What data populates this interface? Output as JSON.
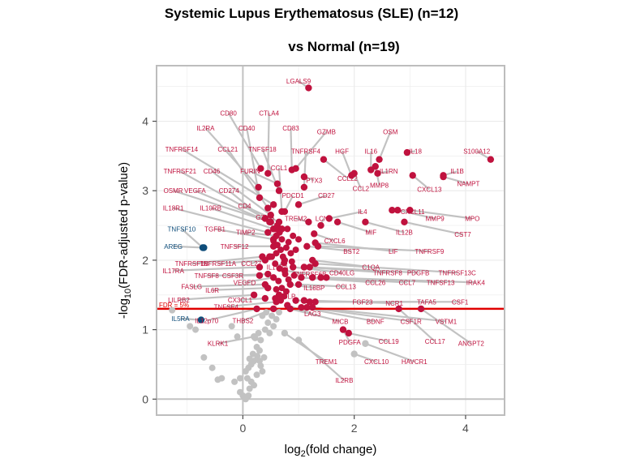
{
  "chart_data": {
    "type": "scatter",
    "title_line1": "Systemic Lupus Erythematosus (SLE) (n=12)",
    "title_line2": "vs Normal (n=19)",
    "xlabel_prefix": "log",
    "xlabel_sub": "2",
    "xlabel_suffix": "(fold change)",
    "ylabel_prefix": "-log",
    "ylabel_sub": "10",
    "ylabel_suffix": "(FDR-adjusted p-value)",
    "xlim": [
      -1.55,
      4.7
    ],
    "ylim": [
      -0.23,
      4.8
    ],
    "xticks": [
      0,
      2,
      4
    ],
    "yticks": [
      0,
      1,
      2,
      3,
      4
    ],
    "grid": true,
    "threshold": {
      "y": 1.301,
      "label": "FDR = 5%",
      "color": "#e00000"
    },
    "colors": {
      "up": "#c0123e",
      "down": "#0e4d7a",
      "ns": "#c2c2c2",
      "leader": "#c2c2c2",
      "zero_line": "#c2c2c2"
    },
    "labeled_points": [
      {
        "name": "LGALS9",
        "x": 1.18,
        "y": 4.48,
        "lx": 1.0,
        "ly": 4.58,
        "dir": "up"
      },
      {
        "name": "CD80",
        "x": 0.32,
        "y": 3.32,
        "lx": -0.26,
        "ly": 4.12,
        "dir": "up"
      },
      {
        "name": "CTLA4",
        "x": 0.45,
        "y": 3.25,
        "lx": 0.47,
        "ly": 4.12,
        "dir": "up"
      },
      {
        "name": "IL2RA",
        "x": 0.28,
        "y": 3.05,
        "lx": -0.67,
        "ly": 3.9,
        "dir": "up"
      },
      {
        "name": "CD40",
        "x": 0.3,
        "y": 2.9,
        "lx": 0.07,
        "ly": 3.9,
        "dir": "up"
      },
      {
        "name": "CD83",
        "x": 0.88,
        "y": 3.3,
        "lx": 0.86,
        "ly": 3.9,
        "dir": "up"
      },
      {
        "name": "GZMB",
        "x": 0.95,
        "y": 3.32,
        "lx": 1.5,
        "ly": 3.85,
        "dir": "up"
      },
      {
        "name": "OSM",
        "x": 2.45,
        "y": 3.45,
        "lx": 2.65,
        "ly": 3.85,
        "dir": "up"
      },
      {
        "name": "TNFRSF14",
        "x": 0.55,
        "y": 2.8,
        "lx": -1.1,
        "ly": 3.6,
        "dir": "up"
      },
      {
        "name": "CCL21",
        "x": 0.45,
        "y": 2.75,
        "lx": -0.27,
        "ly": 3.6,
        "dir": "up"
      },
      {
        "name": "TNFSF18",
        "x": 0.65,
        "y": 3.0,
        "lx": 0.35,
        "ly": 3.6,
        "dir": "up"
      },
      {
        "name": "TNFRSF4",
        "x": 1.1,
        "y": 3.05,
        "lx": 1.13,
        "ly": 3.57,
        "dir": "up"
      },
      {
        "name": "HGF",
        "x": 1.95,
        "y": 3.22,
        "lx": 1.78,
        "ly": 3.57,
        "dir": "up"
      },
      {
        "name": "IL16",
        "x": 2.3,
        "y": 3.3,
        "lx": 2.3,
        "ly": 3.57,
        "dir": "up"
      },
      {
        "name": "IL18",
        "x": 2.95,
        "y": 3.55,
        "lx": 3.1,
        "ly": 3.57,
        "dir": "up"
      },
      {
        "name": "S100A12",
        "x": 4.45,
        "y": 3.45,
        "lx": 4.2,
        "ly": 3.57,
        "dir": "up"
      },
      {
        "name": "CCL1",
        "x": 0.7,
        "y": 2.7,
        "lx": 0.65,
        "ly": 3.33,
        "dir": "up"
      },
      {
        "name": "TNFRSF21",
        "x": 0.4,
        "y": 2.6,
        "lx": -1.13,
        "ly": 3.28,
        "dir": "up"
      },
      {
        "name": "CD46",
        "x": 0.5,
        "y": 2.65,
        "lx": -0.56,
        "ly": 3.28,
        "dir": "up"
      },
      {
        "name": "FURIN",
        "x": 0.62,
        "y": 3.1,
        "lx": 0.13,
        "ly": 3.28,
        "dir": "up"
      },
      {
        "name": "IL1RN",
        "x": 2.42,
        "y": 3.25,
        "lx": 2.62,
        "ly": 3.28,
        "dir": "up"
      },
      {
        "name": "IL1B",
        "x": 3.6,
        "y": 3.22,
        "lx": 3.85,
        "ly": 3.28,
        "dir": "up"
      },
      {
        "name": "PTX3",
        "x": 1.1,
        "y": 3.2,
        "lx": 1.28,
        "ly": 3.15,
        "dir": "up"
      },
      {
        "name": "CCL22",
        "x": 1.45,
        "y": 3.45,
        "lx": 1.88,
        "ly": 3.18,
        "dir": "up"
      },
      {
        "name": "MMP8",
        "x": 2.38,
        "y": 3.35,
        "lx": 2.45,
        "ly": 3.08,
        "dir": "up"
      },
      {
        "name": "CXCL13",
        "x": 3.05,
        "y": 3.22,
        "lx": 3.35,
        "ly": 3.02,
        "dir": "up"
      },
      {
        "name": "NAMPT",
        "x": 3.6,
        "y": 3.2,
        "lx": 4.05,
        "ly": 3.1,
        "dir": "up"
      },
      {
        "name": "OSMR",
        "x": 0.5,
        "y": 2.55,
        "lx": -1.25,
        "ly": 3.0,
        "dir": "up"
      },
      {
        "name": "VEGFA",
        "x": 0.48,
        "y": 2.55,
        "lx": -0.86,
        "ly": 3.0,
        "dir": "up"
      },
      {
        "name": "CD274",
        "x": 0.6,
        "y": 2.45,
        "lx": -0.25,
        "ly": 3.0,
        "dir": "up"
      },
      {
        "name": "PDCD1",
        "x": 0.75,
        "y": 2.7,
        "lx": 0.9,
        "ly": 2.93,
        "dir": "up"
      },
      {
        "name": "CD27",
        "x": 1.0,
        "y": 2.8,
        "lx": 1.5,
        "ly": 2.93,
        "dir": "up"
      },
      {
        "name": "CCL2",
        "x": 2.0,
        "y": 3.25,
        "lx": 2.12,
        "ly": 3.03,
        "dir": "up"
      },
      {
        "name": "IL18R1",
        "x": 0.45,
        "y": 2.4,
        "lx": -1.25,
        "ly": 2.75,
        "dir": "up"
      },
      {
        "name": "IL10RB",
        "x": 0.55,
        "y": 2.45,
        "lx": -0.58,
        "ly": 2.75,
        "dir": "up"
      },
      {
        "name": "CD4",
        "x": 0.65,
        "y": 2.55,
        "lx": 0.03,
        "ly": 2.78,
        "dir": "up"
      },
      {
        "name": "IL4",
        "x": 1.55,
        "y": 2.6,
        "lx": 2.15,
        "ly": 2.7,
        "dir": "up"
      },
      {
        "name": "CXCL11",
        "x": 2.68,
        "y": 2.72,
        "lx": 3.05,
        "ly": 2.7,
        "dir": "up"
      },
      {
        "name": "GZMA",
        "x": 0.7,
        "y": 2.45,
        "lx": 0.4,
        "ly": 2.62,
        "dir": "up"
      },
      {
        "name": "TREM2",
        "x": 1.18,
        "y": 2.55,
        "lx": 0.95,
        "ly": 2.6,
        "dir": "up"
      },
      {
        "name": "LCN2",
        "x": 1.4,
        "y": 2.5,
        "lx": 1.45,
        "ly": 2.6,
        "dir": "up"
      },
      {
        "name": "MMP9",
        "x": 2.78,
        "y": 2.72,
        "lx": 3.45,
        "ly": 2.6,
        "dir": "up"
      },
      {
        "name": "MPO",
        "x": 3.0,
        "y": 2.72,
        "lx": 4.12,
        "ly": 2.6,
        "dir": "up"
      },
      {
        "name": "TNFSF10",
        "x": -0.72,
        "y": 2.18,
        "lx": -1.1,
        "ly": 2.45,
        "dir": "down"
      },
      {
        "name": "TGFB1",
        "x": 0.55,
        "y": 2.3,
        "lx": -0.5,
        "ly": 2.45,
        "dir": "up"
      },
      {
        "name": "TIMP2",
        "x": 0.6,
        "y": 2.35,
        "lx": 0.05,
        "ly": 2.4,
        "dir": "up"
      },
      {
        "name": "MIF",
        "x": 1.7,
        "y": 2.55,
        "lx": 2.3,
        "ly": 2.4,
        "dir": "up"
      },
      {
        "name": "IL12B",
        "x": 2.2,
        "y": 2.55,
        "lx": 2.9,
        "ly": 2.4,
        "dir": "up"
      },
      {
        "name": "CST7",
        "x": 2.9,
        "y": 2.55,
        "lx": 3.95,
        "ly": 2.37,
        "dir": "up"
      },
      {
        "name": "CXCL6",
        "x": 1.28,
        "y": 2.38,
        "lx": 1.65,
        "ly": 2.28,
        "dir": "up"
      },
      {
        "name": "AREG",
        "x": -0.7,
        "y": 2.18,
        "lx": -1.25,
        "ly": 2.2,
        "dir": "down"
      },
      {
        "name": "TNFSF12",
        "x": 0.55,
        "y": 2.2,
        "lx": -0.15,
        "ly": 2.2,
        "dir": "up"
      },
      {
        "name": "BST2",
        "x": 1.15,
        "y": 2.2,
        "lx": 1.95,
        "ly": 2.13,
        "dir": "up"
      },
      {
        "name": "LIF",
        "x": 1.3,
        "y": 2.25,
        "lx": 2.7,
        "ly": 2.13,
        "dir": "up"
      },
      {
        "name": "TNFRSF9",
        "x": 1.35,
        "y": 2.2,
        "lx": 3.35,
        "ly": 2.13,
        "dir": "up"
      },
      {
        "name": "TNFRSF1B",
        "x": 0.35,
        "y": 2.05,
        "lx": -0.92,
        "ly": 1.95,
        "dir": "up"
      },
      {
        "name": "TNFRSF11A",
        "x": 0.4,
        "y": 2.0,
        "lx": -0.45,
        "ly": 1.95,
        "dir": "up"
      },
      {
        "name": "CCL27",
        "x": 0.48,
        "y": 2.05,
        "lx": 0.15,
        "ly": 1.95,
        "dir": "up"
      },
      {
        "name": "IL15RA",
        "x": 0.75,
        "y": 2.0,
        "lx": 0.62,
        "ly": 1.9,
        "dir": "up"
      },
      {
        "name": "C1QA",
        "x": 1.25,
        "y": 2.0,
        "lx": 2.3,
        "ly": 1.9,
        "dir": "up"
      },
      {
        "name": "TNFRSF13C",
        "x": 1.3,
        "y": 1.95,
        "lx": 3.85,
        "ly": 1.82,
        "dir": "up"
      },
      {
        "name": "IL17RA",
        "x": 0.3,
        "y": 1.9,
        "lx": -1.25,
        "ly": 1.85,
        "dir": "up"
      },
      {
        "name": "CD40LG",
        "x": 0.9,
        "y": 1.9,
        "lx": 1.78,
        "ly": 1.82,
        "dir": "up"
      },
      {
        "name": "TNFRSF8",
        "x": 1.1,
        "y": 1.9,
        "lx": 2.6,
        "ly": 1.82,
        "dir": "up"
      },
      {
        "name": "PDGFB",
        "x": 1.2,
        "y": 1.9,
        "lx": 3.15,
        "ly": 1.82,
        "dir": "up"
      },
      {
        "name": "TNFRSF6B",
        "x": 0.75,
        "y": 1.85,
        "lx": 1.2,
        "ly": 1.8,
        "dir": "up"
      },
      {
        "name": "TNFSF8",
        "x": 0.3,
        "y": 1.78,
        "lx": -0.65,
        "ly": 1.78,
        "dir": "up"
      },
      {
        "name": "CSF3R",
        "x": 0.45,
        "y": 1.8,
        "lx": -0.18,
        "ly": 1.78,
        "dir": "up"
      },
      {
        "name": "VEGFD",
        "x": 0.55,
        "y": 1.75,
        "lx": 0.03,
        "ly": 1.68,
        "dir": "up"
      },
      {
        "name": "CCL26",
        "x": 1.05,
        "y": 1.75,
        "lx": 2.38,
        "ly": 1.68,
        "dir": "up"
      },
      {
        "name": "CCL7",
        "x": 1.25,
        "y": 1.75,
        "lx": 2.95,
        "ly": 1.68,
        "dir": "up"
      },
      {
        "name": "TNFSF13",
        "x": 1.4,
        "y": 1.75,
        "lx": 3.55,
        "ly": 1.68,
        "dir": "up"
      },
      {
        "name": "IRAK4",
        "x": 1.5,
        "y": 1.75,
        "lx": 4.18,
        "ly": 1.68,
        "dir": "up"
      },
      {
        "name": "FASLG",
        "x": 0.4,
        "y": 1.65,
        "lx": -0.92,
        "ly": 1.62,
        "dir": "up"
      },
      {
        "name": "IL6R",
        "x": 0.45,
        "y": 1.6,
        "lx": -0.55,
        "ly": 1.57,
        "dir": "up"
      },
      {
        "name": "IL18BP",
        "x": 0.85,
        "y": 1.65,
        "lx": 1.28,
        "ly": 1.6,
        "dir": "up"
      },
      {
        "name": "CCL13",
        "x": 1.0,
        "y": 1.65,
        "lx": 1.85,
        "ly": 1.62,
        "dir": "up"
      },
      {
        "name": "TSLP",
        "x": 0.65,
        "y": 1.5,
        "lx": 0.8,
        "ly": 1.48,
        "dir": "up"
      },
      {
        "name": "LILRB2",
        "x": 0.2,
        "y": 1.5,
        "lx": -1.15,
        "ly": 1.43,
        "dir": "up"
      },
      {
        "name": "CX3CL1",
        "x": 0.4,
        "y": 1.45,
        "lx": -0.05,
        "ly": 1.43,
        "dir": "up"
      },
      {
        "name": "FGF23",
        "x": 0.95,
        "y": 1.42,
        "lx": 2.15,
        "ly": 1.4,
        "dir": "up"
      },
      {
        "name": "NCR1",
        "x": 1.1,
        "y": 1.42,
        "lx": 2.72,
        "ly": 1.38,
        "dir": "up"
      },
      {
        "name": "TAFA5",
        "x": 1.2,
        "y": 1.4,
        "lx": 3.3,
        "ly": 1.4,
        "dir": "up"
      },
      {
        "name": "CSF1",
        "x": 1.3,
        "y": 1.4,
        "lx": 3.9,
        "ly": 1.4,
        "dir": "up"
      },
      {
        "name": "TNFSF4",
        "x": 0.6,
        "y": 1.4,
        "lx": -0.3,
        "ly": 1.33,
        "dir": "up"
      },
      {
        "name": "LAG3",
        "x": 0.8,
        "y": 1.35,
        "lx": 1.25,
        "ly": 1.23,
        "dir": "up"
      },
      {
        "name": "IL5RA",
        "x": -0.75,
        "y": 1.14,
        "lx": -1.12,
        "ly": 1.16,
        "dir": "down"
      },
      {
        "name": "IL12p70",
        "x": 0.25,
        "y": 1.3,
        "lx": -0.65,
        "ly": 1.13,
        "dir": "up"
      },
      {
        "name": "THBS2",
        "x": 0.55,
        "y": 1.3,
        "lx": 0.0,
        "ly": 1.13,
        "dir": "up"
      },
      {
        "name": "MICB",
        "x": 0.85,
        "y": 1.3,
        "lx": 1.75,
        "ly": 1.12,
        "dir": "up"
      },
      {
        "name": "BDNF",
        "x": 1.05,
        "y": 1.32,
        "lx": 2.38,
        "ly": 1.12,
        "dir": "up"
      },
      {
        "name": "CSF1R",
        "x": 1.15,
        "y": 1.32,
        "lx": 3.02,
        "ly": 1.12,
        "dir": "up"
      },
      {
        "name": "VSTM1",
        "x": 1.25,
        "y": 1.32,
        "lx": 3.65,
        "ly": 1.12,
        "dir": "up"
      },
      {
        "name": "KLRK1",
        "x": 0.2,
        "y": 0.9,
        "lx": -0.45,
        "ly": 0.8,
        "dir": "ns"
      },
      {
        "name": "PDGFA",
        "x": 1.8,
        "y": 1.0,
        "lx": 1.92,
        "ly": 0.82,
        "dir": "up"
      },
      {
        "name": "CCL19",
        "x": 1.9,
        "y": 0.95,
        "lx": 2.62,
        "ly": 0.83,
        "dir": "up"
      },
      {
        "name": "CCL17",
        "x": 2.8,
        "y": 1.3,
        "lx": 3.45,
        "ly": 0.83,
        "dir": "up"
      },
      {
        "name": "ANGPT2",
        "x": 3.2,
        "y": 1.3,
        "lx": 4.1,
        "ly": 0.8,
        "dir": "up"
      },
      {
        "name": "TREM1",
        "x": 0.75,
        "y": 0.95,
        "lx": 1.5,
        "ly": 0.54,
        "dir": "ns"
      },
      {
        "name": "CXCL10",
        "x": 2.0,
        "y": 0.65,
        "lx": 2.4,
        "ly": 0.54,
        "dir": "ns"
      },
      {
        "name": "HAVCR1",
        "x": 2.2,
        "y": 0.8,
        "lx": 3.08,
        "ly": 0.54,
        "dir": "ns"
      },
      {
        "name": "IL2RB",
        "x": 1.0,
        "y": 0.85,
        "lx": 1.82,
        "ly": 0.27,
        "dir": "ns"
      }
    ],
    "other_points": {
      "up": [
        [
          0.55,
          2.28
        ],
        [
          0.62,
          2.22
        ],
        [
          0.7,
          2.3
        ],
        [
          0.78,
          2.18
        ],
        [
          0.82,
          2.26
        ],
        [
          0.6,
          2.1
        ],
        [
          0.68,
          2.15
        ],
        [
          0.72,
          2.05
        ],
        [
          0.58,
          1.95
        ],
        [
          0.66,
          1.88
        ],
        [
          0.52,
          2.05
        ],
        [
          0.74,
          1.96
        ],
        [
          0.86,
          2.1
        ],
        [
          0.95,
          2.15
        ],
        [
          0.88,
          1.98
        ],
        [
          0.64,
          1.7
        ],
        [
          0.7,
          1.6
        ],
        [
          0.78,
          1.55
        ],
        [
          0.82,
          1.72
        ],
        [
          0.6,
          1.58
        ],
        [
          0.76,
          1.8
        ],
        [
          0.92,
          1.78
        ],
        [
          0.68,
          1.42
        ],
        [
          0.74,
          1.48
        ],
        [
          0.58,
          1.45
        ],
        [
          0.66,
          2.4
        ],
        [
          0.8,
          2.45
        ],
        [
          0.9,
          2.35
        ],
        [
          1.0,
          2.3
        ],
        [
          0.62,
          2.5
        ]
      ],
      "ns": [
        [
          -1.27,
          1.28
        ],
        [
          -0.95,
          1.05
        ],
        [
          -0.85,
          1.0
        ],
        [
          -0.7,
          0.6
        ],
        [
          -0.55,
          0.45
        ],
        [
          -0.38,
          0.3
        ],
        [
          -0.45,
          0.28
        ],
        [
          -0.2,
          1.05
        ],
        [
          -0.1,
          0.9
        ],
        [
          -0.05,
          0.3
        ],
        [
          -0.15,
          0.25
        ],
        [
          0.05,
          0.4
        ],
        [
          0.0,
          0.05
        ],
        [
          -0.05,
          0.1
        ],
        [
          0.05,
          0.0
        ],
        [
          0.1,
          0.05
        ],
        [
          0.12,
          0.15
        ],
        [
          0.1,
          0.45
        ],
        [
          0.15,
          0.5
        ],
        [
          0.2,
          0.55
        ],
        [
          0.25,
          0.35
        ],
        [
          0.2,
          0.2
        ],
        [
          0.15,
          0.25
        ],
        [
          0.18,
          0.65
        ],
        [
          0.25,
          0.75
        ],
        [
          0.3,
          0.7
        ],
        [
          0.32,
          0.85
        ],
        [
          0.28,
          0.95
        ],
        [
          0.35,
          0.4
        ],
        [
          0.38,
          0.6
        ],
        [
          0.3,
          0.55
        ],
        [
          0.4,
          1.0
        ],
        [
          0.45,
          1.1
        ],
        [
          0.42,
          1.25
        ],
        [
          0.48,
          0.95
        ],
        [
          0.52,
          1.2
        ],
        [
          0.55,
          1.05
        ],
        [
          0.6,
          1.15
        ],
        [
          0.65,
          1.25
        ],
        [
          0.35,
          1.2
        ],
        [
          0.22,
          0.88
        ],
        [
          0.26,
          0.62
        ],
        [
          0.32,
          0.48
        ],
        [
          0.08,
          0.3
        ],
        [
          0.12,
          0.58
        ]
      ]
    }
  }
}
